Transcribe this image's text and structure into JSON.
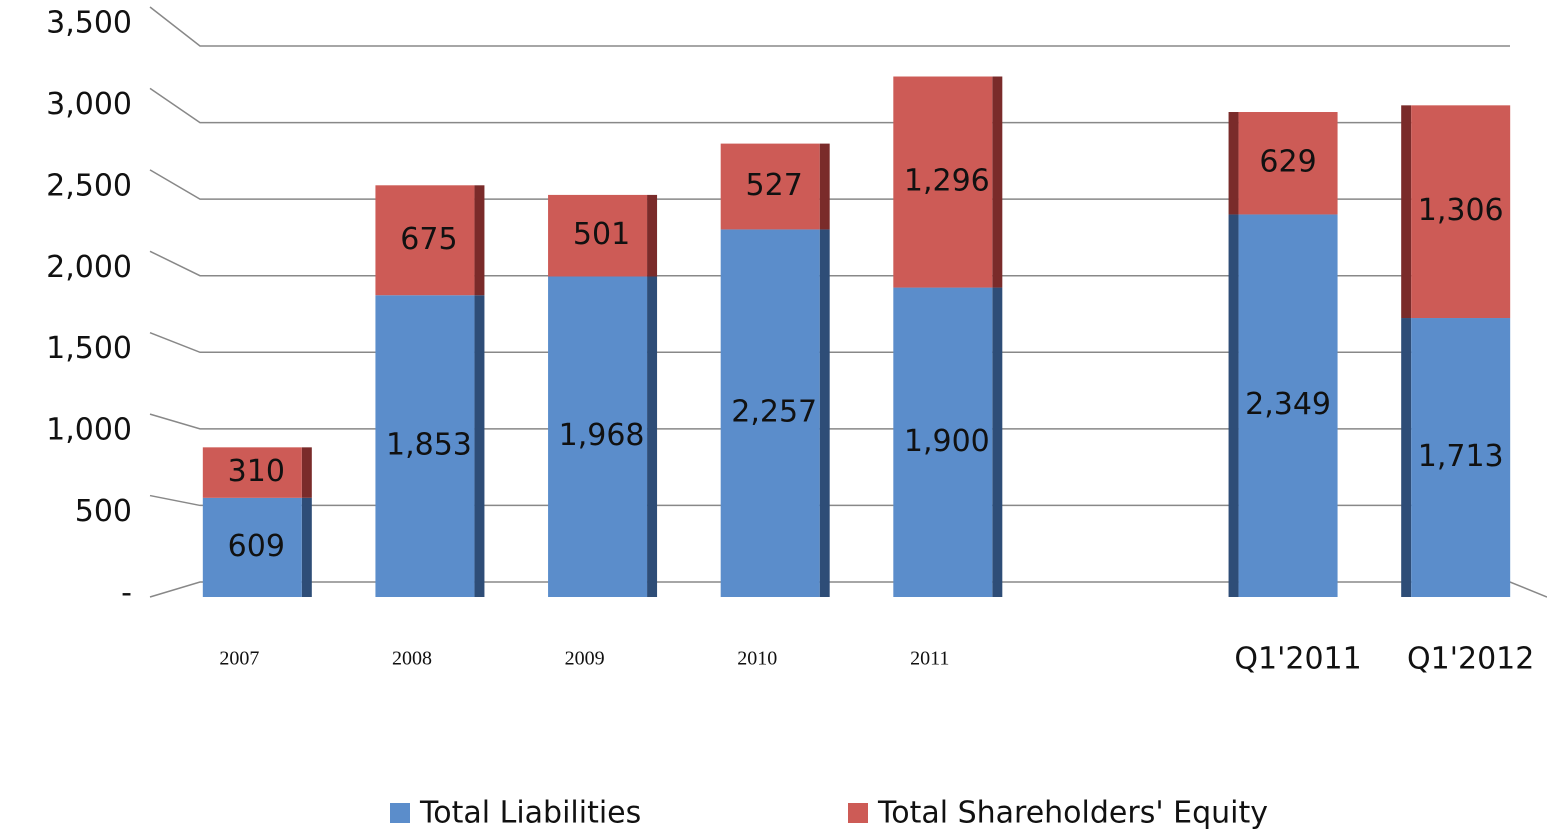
{
  "chart_data": {
    "type": "stacked_bar",
    "categories": [
      "2007",
      "2008",
      "2009",
      "2010",
      "2011",
      null,
      "Q1'2011",
      "Q1'2012"
    ],
    "series": [
      {
        "name": "Total Liabilities",
        "color": "#5b8dcb",
        "values": [
          609,
          1853,
          1968,
          2257,
          1900,
          null,
          2349,
          1713
        ],
        "value_labels": [
          "609",
          "1,853",
          "1,968",
          "2,257",
          "1,900",
          null,
          "2,349",
          "1,713"
        ]
      },
      {
        "name": "Total Shareholders' Equity",
        "color": "#cd5b56",
        "values": [
          310,
          675,
          501,
          527,
          1296,
          null,
          629,
          1306
        ],
        "value_labels": [
          "310",
          "675",
          "501",
          "527",
          "1,296",
          null,
          "629",
          "1,306"
        ]
      }
    ],
    "ylim": [
      0,
      3500
    ],
    "yticks": [
      {
        "value": 0,
        "label": "-"
      },
      500,
      {
        "value": 1000,
        "label": "1,000"
      },
      {
        "value": 1500,
        "label": "1,500"
      },
      {
        "value": 2000,
        "label": "2,000"
      },
      {
        "value": 2500,
        "label": "2,500"
      },
      {
        "value": 3000,
        "label": "3,000"
      },
      {
        "value": 3500,
        "label": "3,500"
      }
    ],
    "grid": true
  }
}
